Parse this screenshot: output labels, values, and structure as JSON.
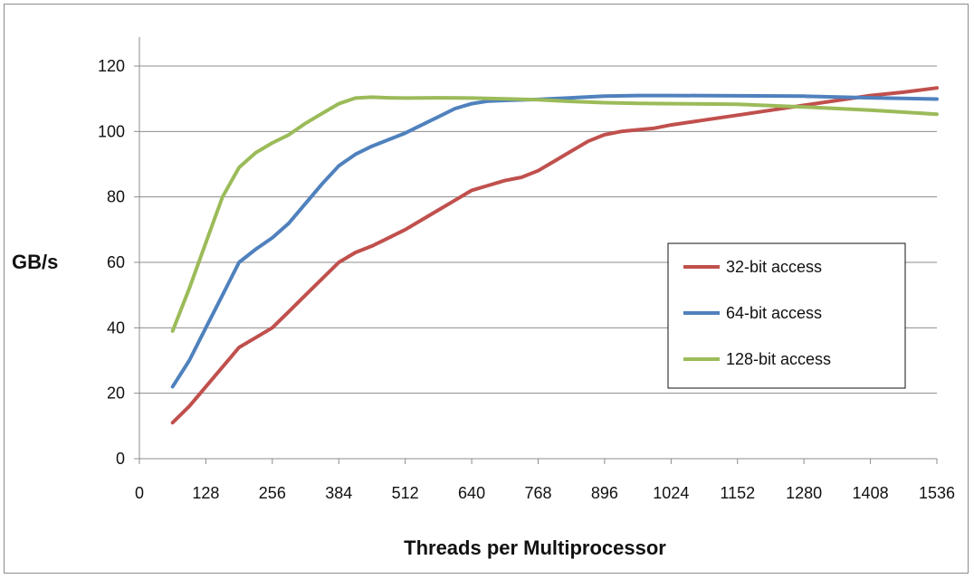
{
  "chart_data": {
    "type": "line",
    "xlabel": "Threads per Multiprocessor",
    "ylabel": "GB/s",
    "xlim": [
      0,
      1536
    ],
    "ylim": [
      0,
      130
    ],
    "x_ticks": [
      0,
      128,
      256,
      384,
      512,
      640,
      768,
      896,
      1024,
      1152,
      1280,
      1408,
      1536
    ],
    "y_ticks": [
      0,
      20,
      40,
      60,
      80,
      100,
      120
    ],
    "grid": "horizontal",
    "legend_position": "right",
    "series": [
      {
        "name": "32-bit access",
        "color": "#c0504d",
        "x": [
          64,
          96,
          128,
          160,
          192,
          224,
          256,
          288,
          320,
          352,
          384,
          416,
          448,
          480,
          512,
          544,
          576,
          608,
          640,
          672,
          704,
          736,
          768,
          800,
          832,
          864,
          896,
          928,
          960,
          992,
          1024,
          1088,
          1152,
          1216,
          1280,
          1344,
          1408,
          1472,
          1536
        ],
        "y": [
          11,
          16,
          22,
          28,
          34,
          37,
          40,
          45,
          50,
          55,
          60,
          63,
          65,
          67.5,
          70,
          73,
          76,
          79,
          82,
          83.5,
          85,
          86,
          88,
          91,
          94,
          97,
          99,
          100,
          100.5,
          101,
          102,
          103.5,
          105,
          106.5,
          108,
          109.5,
          111,
          112,
          113.3
        ]
      },
      {
        "name": "64-bit access",
        "color": "#4f81bd",
        "x": [
          64,
          96,
          128,
          160,
          192,
          224,
          256,
          288,
          320,
          352,
          384,
          416,
          448,
          480,
          512,
          544,
          576,
          608,
          640,
          672,
          704,
          768,
          832,
          896,
          960,
          1024,
          1152,
          1280,
          1408,
          1536
        ],
        "y": [
          22,
          30,
          40,
          50,
          60,
          64,
          67.5,
          72,
          78,
          84,
          89.5,
          93,
          95.5,
          97.5,
          99.5,
          102,
          104.5,
          107,
          108.5,
          109.3,
          109.5,
          109.8,
          110.3,
          110.8,
          111,
          111,
          110.9,
          110.8,
          110.3,
          109.9
        ]
      },
      {
        "name": "128-bit access",
        "color": "#9bbb59",
        "x": [
          64,
          96,
          128,
          160,
          192,
          224,
          256,
          288,
          320,
          352,
          384,
          416,
          448,
          480,
          512,
          576,
          640,
          704,
          768,
          832,
          896,
          960,
          1024,
          1152,
          1280,
          1408,
          1536
        ],
        "y": [
          39,
          52,
          66,
          80,
          89,
          93.5,
          96.5,
          99,
          102.5,
          105.5,
          108.5,
          110.2,
          110.5,
          110.3,
          110.2,
          110.3,
          110.2,
          110,
          109.7,
          109.2,
          108.8,
          108.6,
          108.5,
          108.3,
          107.5,
          106.5,
          105.3
        ]
      }
    ]
  }
}
